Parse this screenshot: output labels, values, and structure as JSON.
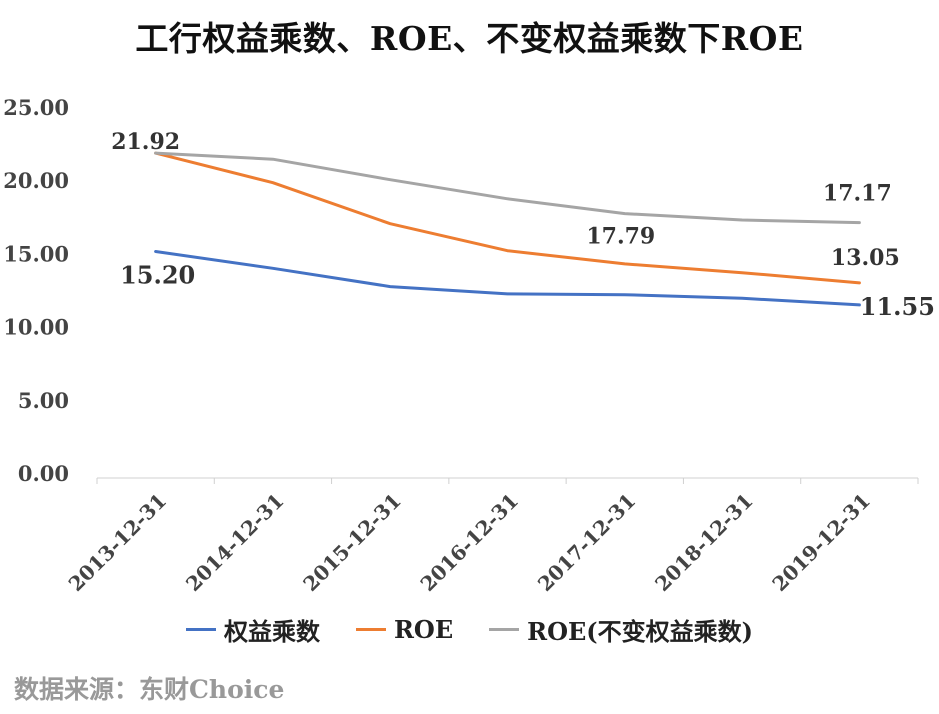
{
  "chart_data": {
    "type": "line",
    "title": "工行权益乘数、ROE、不变权益乘数下ROE",
    "categories": [
      "2013-12-31",
      "2014-12-31",
      "2015-12-31",
      "2016-12-31",
      "2017-12-31",
      "2018-12-31",
      "2019-12-31"
    ],
    "ylim": [
      0,
      25
    ],
    "yticks": [
      "0.00",
      "5.00",
      "10.00",
      "15.00",
      "20.00",
      "25.00"
    ],
    "grid": false,
    "legend_position": "bottom",
    "series": [
      {
        "name": "权益乘数",
        "color": "#4472C4",
        "values": [
          15.2,
          14.05,
          12.8,
          12.3,
          12.25,
          12.0,
          11.55
        ]
      },
      {
        "name": "ROE",
        "color": "#ED7D31",
        "values": [
          21.92,
          19.9,
          17.1,
          15.25,
          14.35,
          13.75,
          13.05
        ]
      },
      {
        "name": "ROE(不变权益乘数)",
        "color": "#A5A5A5",
        "values": [
          21.92,
          21.5,
          20.1,
          18.8,
          17.79,
          17.35,
          17.17
        ]
      }
    ],
    "data_labels": [
      {
        "text": "21.92",
        "series": 1,
        "index": 0
      },
      {
        "text": "15.20",
        "series": 0,
        "index": 0
      },
      {
        "text": "17.79",
        "series": 2,
        "index": 4
      },
      {
        "text": "17.17",
        "series": 2,
        "index": 6
      },
      {
        "text": "13.05",
        "series": 1,
        "index": 6
      },
      {
        "text": "11.55",
        "series": 0,
        "index": 6
      }
    ]
  },
  "source_text": "数据来源：东财Choice"
}
